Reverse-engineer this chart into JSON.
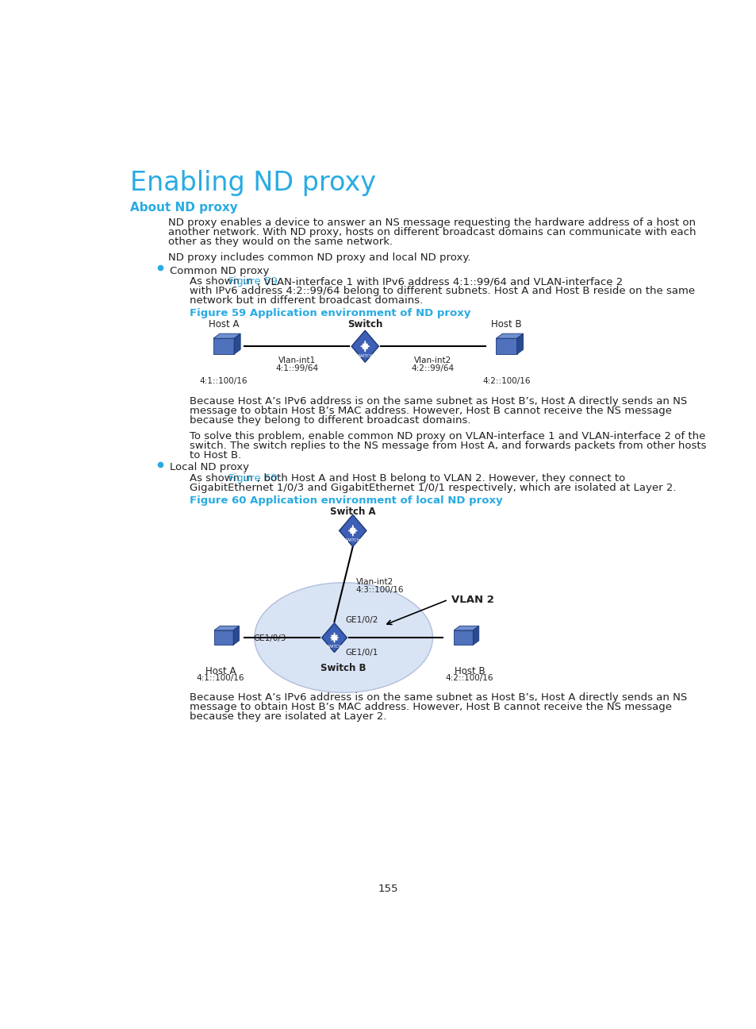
{
  "title": "Enabling ND proxy",
  "section_title": "About ND proxy",
  "section_color": "#29ABE2",
  "title_color": "#29ABE2",
  "body_color": "#231F20",
  "bg_color": "#FFFFFF",
  "link_color": "#29ABE2",
  "para1_lines": [
    "ND proxy enables a device to answer an NS message requesting the hardware address of a host on",
    "another network. With ND proxy, hosts on different broadcast domains can communicate with each",
    "other as they would on the same network."
  ],
  "para2": "ND proxy includes common ND proxy and local ND proxy.",
  "bullet1": "Common ND proxy",
  "fig59_pre": "As shown in ",
  "fig59_link": "Figure 59",
  "fig59_post": ", VLAN-interface 1 with IPv6 address 4:1::99/64 and VLAN-interface 2",
  "fig59_line2": "with IPv6 address 4:2::99/64 belong to different subnets. Host A and Host B reside on the same",
  "fig59_line3": "network but in different broadcast domains.",
  "fig59_title": "Figure 59 Application environment of ND proxy",
  "para3_lines": [
    "Because Host A’s IPv6 address is on the same subnet as Host B’s, Host A directly sends an NS",
    "message to obtain Host B’s MAC address. However, Host B cannot receive the NS message",
    "because they belong to different broadcast domains."
  ],
  "para4_lines": [
    "To solve this problem, enable common ND proxy on VLAN-interface 1 and VLAN-interface 2 of the",
    "switch. The switch replies to the NS message from Host A, and forwards packets from other hosts",
    "to Host B."
  ],
  "bullet2": "Local ND proxy",
  "fig60_pre": "As shown in ",
  "fig60_link": "Figure 60",
  "fig60_post": ", both Host A and Host B belong to VLAN 2. However, they connect to",
  "fig60_line2": "GigabitEthernet 1/0/3 and GigabitEthernet 1/0/1 respectively, which are isolated at Layer 2.",
  "fig60_title": "Figure 60 Application environment of local ND proxy",
  "para5_lines": [
    "Because Host A’s IPv6 address is on the same subnet as Host B’s, Host A directly sends an NS",
    "message to obtain Host B’s MAC address. However, Host B cannot receive the NS message",
    "because they are isolated at Layer 2."
  ],
  "page_num": "155",
  "icon_front": "#5072BC",
  "icon_top": "#7090D0",
  "icon_right": "#2A4A90",
  "icon_edge": "#1a3878",
  "sw_fill": "#3D5FB5",
  "sw_edge": "#1a3878",
  "ellipse_fill": "#C8D8F0",
  "ellipse_edge": "#9AAAD0"
}
